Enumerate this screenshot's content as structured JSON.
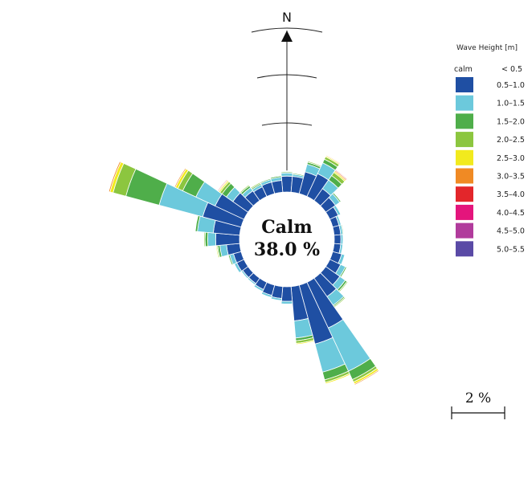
{
  "chart_data": {
    "type": "wind_rose",
    "north_label": "N",
    "calm_label": "Calm",
    "calm_percent": "38.0 %",
    "scale_label": "2 %",
    "legend": {
      "title": "Wave Height [m]",
      "calm_label": "calm",
      "calm_range": "<  0.5",
      "bins": [
        {
          "label": "0.5–1.0",
          "color": "#1f4fa3"
        },
        {
          "label": "1.0–1.5",
          "color": "#6cc9dc"
        },
        {
          "label": "1.5–2.0",
          "color": "#4fae4a"
        },
        {
          "label": "2.0–2.5",
          "color": "#8cc63f"
        },
        {
          "label": "2.5–3.0",
          "color": "#f2ea1e"
        },
        {
          "label": "3.0–3.5",
          "color": "#f08a24"
        },
        {
          "label": "3.5–4.0",
          "color": "#e3262b"
        },
        {
          "label": "4.0–4.5",
          "color": "#e4157c"
        },
        {
          "label": "4.5–5.0",
          "color": "#b13b9c"
        },
        {
          "label": "5.0–5.5",
          "color": "#5a4aa6"
        }
      ]
    },
    "sector_width_deg": 10,
    "sectors": [
      {
        "dir": 0,
        "values": [
          0.6,
          0.12,
          0.04,
          0.02,
          0.02
        ]
      },
      {
        "dir": 10,
        "values": [
          0.6,
          0.08,
          0.04,
          0.02,
          0.02
        ]
      },
      {
        "dir": 20,
        "values": [
          0.85,
          0.3,
          0.08,
          0.04
        ]
      },
      {
        "dir": 30,
        "values": [
          0.95,
          0.45,
          0.15,
          0.1,
          0.04,
          0.03
        ]
      },
      {
        "dir": 40,
        "values": [
          0.55,
          0.4,
          0.2,
          0.15,
          0.05,
          0.04,
          0.03
        ]
      },
      {
        "dir": 50,
        "values": [
          0.45,
          0.2,
          0.05
        ]
      },
      {
        "dir": 60,
        "values": [
          0.35,
          0.1
        ]
      },
      {
        "dir": 70,
        "values": [
          0.25,
          0.08
        ]
      },
      {
        "dir": 80,
        "values": [
          0.25,
          0.08,
          0.03
        ]
      },
      {
        "dir": 90,
        "values": [
          0.25,
          0.08
        ]
      },
      {
        "dir": 100,
        "values": [
          0.25,
          0.08
        ]
      },
      {
        "dir": 110,
        "values": [
          0.35,
          0.12
        ]
      },
      {
        "dir": 120,
        "values": [
          0.45,
          0.2,
          0.05
        ]
      },
      {
        "dir": 130,
        "values": [
          0.65,
          0.25,
          0.08,
          0.04
        ]
      },
      {
        "dir": 140,
        "values": [
          0.85,
          0.4,
          0.05,
          0.04
        ]
      },
      {
        "dir": 150,
        "values": [
          1.9,
          1.8,
          0.35,
          0.1,
          0.08,
          0.04
        ]
      },
      {
        "dir": 160,
        "values": [
          2.3,
          1.1,
          0.3,
          0.1,
          0.05
        ]
      },
      {
        "dir": 170,
        "values": [
          1.3,
          0.65,
          0.1,
          0.1,
          0.04
        ]
      },
      {
        "dir": 180,
        "values": [
          0.55,
          0.1
        ]
      },
      {
        "dir": 190,
        "values": [
          0.45,
          0.08
        ]
      },
      {
        "dir": 200,
        "values": [
          0.4,
          0.08
        ]
      },
      {
        "dir": 210,
        "values": [
          0.3,
          0.08
        ]
      },
      {
        "dir": 220,
        "values": [
          0.25,
          0.06
        ]
      },
      {
        "dir": 230,
        "values": [
          0.25,
          0.06
        ]
      },
      {
        "dir": 240,
        "values": [
          0.3,
          0.1
        ]
      },
      {
        "dir": 250,
        "values": [
          0.3,
          0.15,
          0.05
        ]
      },
      {
        "dir": 260,
        "values": [
          0.5,
          0.25,
          0.08,
          0.04,
          0.03
        ]
      },
      {
        "dir": 270,
        "values": [
          0.9,
          0.3,
          0.1,
          0.04
        ]
      },
      {
        "dir": 280,
        "values": [
          1.0,
          0.6,
          0.08
        ]
      },
      {
        "dir": 290,
        "values": [
          1.5,
          1.7,
          1.3,
          0.5,
          0.12,
          0.05
        ]
      },
      {
        "dir": 300,
        "values": [
          1.2,
          0.8,
          0.55,
          0.2,
          0.1,
          0.04
        ]
      },
      {
        "dir": 310,
        "values": [
          0.7,
          0.3,
          0.2,
          0.1,
          0.05,
          0.03,
          0.03
        ]
      },
      {
        "dir": 320,
        "values": [
          0.45,
          0.15,
          0.08,
          0.04
        ]
      },
      {
        "dir": 330,
        "values": [
          0.4,
          0.1,
          0.05,
          0.04
        ]
      },
      {
        "dir": 340,
        "values": [
          0.45,
          0.1,
          0.04,
          0.02
        ]
      },
      {
        "dir": 350,
        "values": [
          0.45,
          0.12,
          0.05,
          0.02
        ]
      }
    ]
  }
}
